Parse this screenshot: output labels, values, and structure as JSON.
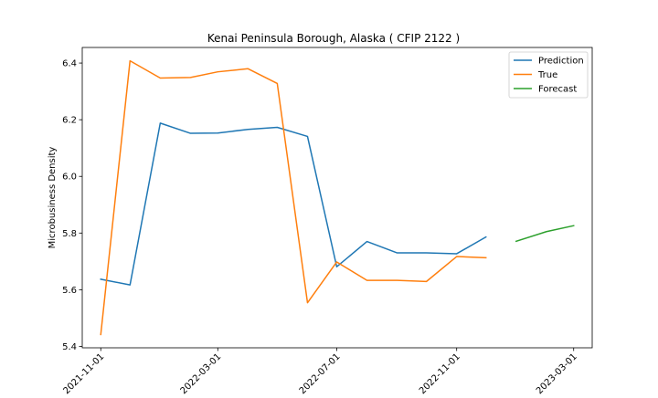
{
  "chart_data": {
    "type": "line",
    "title": "Kenai Peninsula Borough, Alaska ( CFIP 2122 )",
    "xlabel": "",
    "ylabel": "Microbusiness Density",
    "x_ticks": [
      "2021-11-01",
      "2022-03-01",
      "2022-07-01",
      "2022-11-01",
      "2023-03-01"
    ],
    "y_ticks": [
      "5.4",
      "5.6",
      "5.8",
      "6.0",
      "6.2",
      "6.4"
    ],
    "xlim": [
      "2021-10-13",
      "2023-03-20"
    ],
    "ylim": [
      5.395,
      6.455
    ],
    "grid": false,
    "legend": "top-right",
    "series": [
      {
        "name": "Prediction",
        "color": "#1f77b4",
        "x": [
          "2021-11-01",
          "2021-12-01",
          "2022-01-01",
          "2022-02-01",
          "2022-03-01",
          "2022-04-01",
          "2022-05-01",
          "2022-06-01",
          "2022-07-01",
          "2022-08-01",
          "2022-09-01",
          "2022-10-01",
          "2022-11-01",
          "2022-12-01"
        ],
        "values": [
          5.637,
          5.617,
          6.188,
          6.152,
          6.153,
          6.166,
          6.173,
          6.141,
          5.681,
          5.77,
          5.73,
          5.73,
          5.727,
          5.786
        ]
      },
      {
        "name": "True",
        "color": "#ff7f0e",
        "x": [
          "2021-11-01",
          "2021-12-01",
          "2022-01-01",
          "2022-02-01",
          "2022-03-01",
          "2022-04-01",
          "2022-05-01",
          "2022-06-01",
          "2022-07-01",
          "2022-08-01",
          "2022-09-01",
          "2022-10-01",
          "2022-11-01",
          "2022-12-01"
        ],
        "values": [
          5.442,
          6.408,
          6.347,
          6.349,
          6.369,
          6.38,
          6.328,
          5.554,
          5.698,
          5.633,
          5.633,
          5.629,
          5.717,
          5.713
        ]
      },
      {
        "name": "Forecast",
        "color": "#2ca02c",
        "x": [
          "2023-01-01",
          "2023-02-01",
          "2023-03-01"
        ],
        "values": [
          5.771,
          5.805,
          5.826
        ]
      }
    ]
  }
}
